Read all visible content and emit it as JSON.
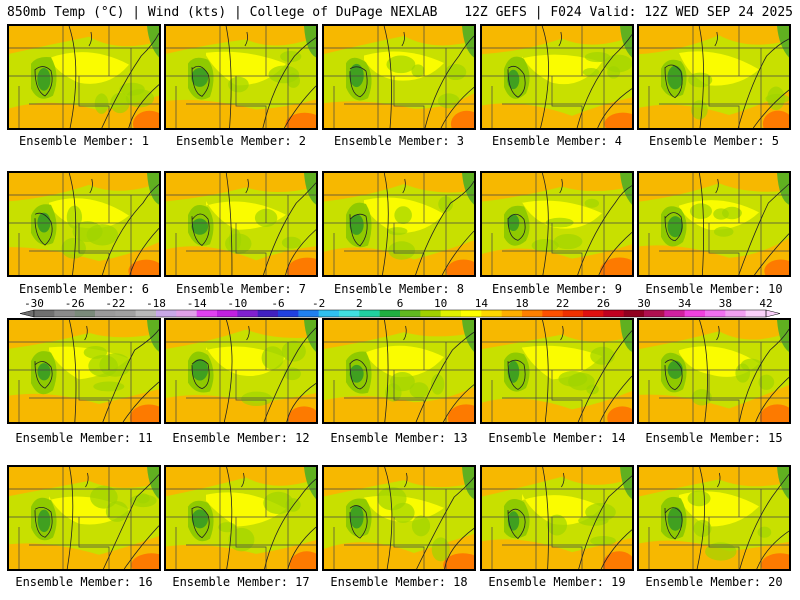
{
  "header": {
    "left": "850mb Temp (°C) | Wind (kts) | College of DuPage NEXLAB",
    "right": "12Z GEFS | F024 Valid: 12Z WED SEP 24 2025"
  },
  "members": [
    "Ensemble Member: 1",
    "Ensemble Member: 2",
    "Ensemble Member: 3",
    "Ensemble Member: 4",
    "Ensemble Member: 5",
    "Ensemble Member: 6",
    "Ensemble Member: 7",
    "Ensemble Member: 8",
    "Ensemble Member: 9",
    "Ensemble Member: 10",
    "Ensemble Member: 11",
    "Ensemble Member: 12",
    "Ensemble Member: 13",
    "Ensemble Member: 14",
    "Ensemble Member: 15",
    "Ensemble Member: 16",
    "Ensemble Member: 17",
    "Ensemble Member: 18",
    "Ensemble Member: 19",
    "Ensemble Member: 20"
  ],
  "colorbar": {
    "labels": [
      "-30",
      "-26",
      "-22",
      "-18",
      "-14",
      "-10",
      "-6",
      "-2",
      "2",
      "6",
      "10",
      "14",
      "18",
      "22",
      "26",
      "30",
      "34",
      "38",
      "42"
    ],
    "colors": [
      "#707070",
      "#8a8a8a",
      "#7a8a7a",
      "#9a9a9a",
      "#a0a0a0",
      "#b8b8b8",
      "#c8a8e8",
      "#e0a0e8",
      "#e040f0",
      "#c020e0",
      "#8020d0",
      "#4020c0",
      "#2040e0",
      "#2080f0",
      "#30c0f0",
      "#40e0e0",
      "#20d0a0",
      "#20b040",
      "#60b820",
      "#a0d000",
      "#e0f000",
      "#ffff00",
      "#ffd800",
      "#ffb000",
      "#ff8000",
      "#ff5000",
      "#f03000",
      "#e01010",
      "#c00020",
      "#900020",
      "#b01050",
      "#d020a0",
      "#f040e0",
      "#f070f0",
      "#f0a0f0",
      "#f8d0f8"
    ]
  }
}
